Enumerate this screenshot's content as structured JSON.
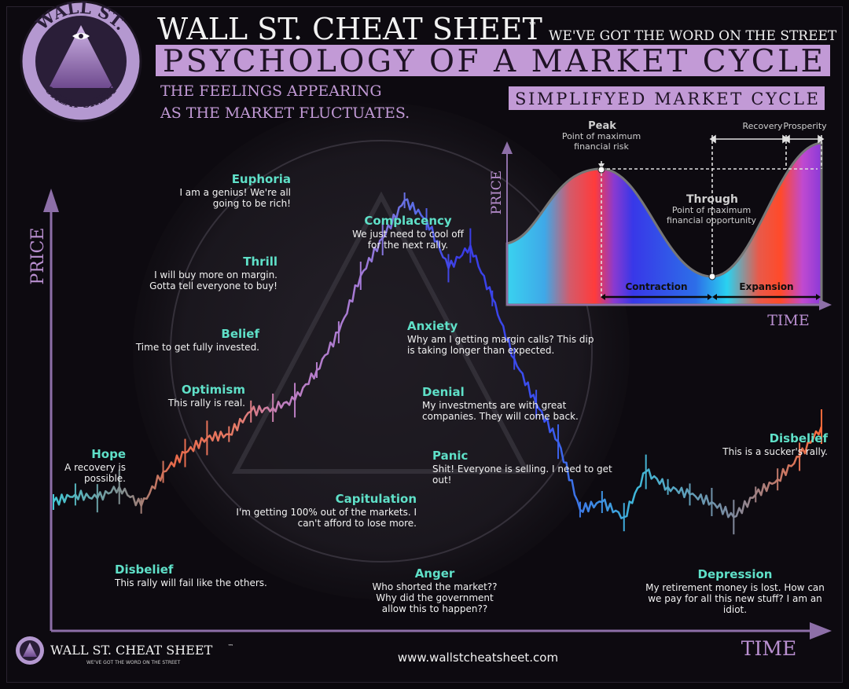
{
  "header": {
    "brand": "WALL ST. CHEAT SHEET",
    "tm": "™",
    "tagline": "WE'VE GOT THE WORD ON THE STREET",
    "title": "PSYCHOLOGY OF A MARKET CYCLE",
    "subtitle_line1": "THE FEELINGS APPEARING",
    "subtitle_line2": "AS THE MARKET FLUCTUATES.",
    "logo_top": "WALL ST.",
    "logo_bottom": "CHEAT SHEET"
  },
  "footer": {
    "brand": "WALL ST. CHEAT SHEET",
    "tm": "™",
    "tagline": "WE'VE GOT THE WORD ON THE STREET",
    "url": "www.wallstcheatsheet.com"
  },
  "colors": {
    "accent_purple": "#b98fd0",
    "banner_purple": "#c29ad6",
    "label_teal": "#5fe0c8",
    "text_white": "#f2f2f2"
  },
  "chart_data": [
    {
      "type": "line",
      "title": "PSYCHOLOGY OF A MARKET CYCLE",
      "xlabel": "TIME",
      "ylabel": "PRICE",
      "x": [
        0,
        1,
        2,
        3,
        4,
        5,
        6,
        7,
        8,
        9,
        10,
        11,
        12,
        13,
        14,
        15,
        16,
        17,
        18,
        19,
        20,
        21,
        22,
        23,
        24,
        25,
        26,
        27,
        28,
        29,
        30,
        31,
        32,
        33,
        34,
        35
      ],
      "y": [
        20,
        22,
        21,
        24,
        19,
        28,
        33,
        37,
        38,
        44,
        45,
        47,
        55,
        65,
        80,
        90,
        100,
        95,
        82,
        88,
        74,
        58,
        46,
        36,
        18,
        20,
        16,
        28,
        24,
        22,
        20,
        16,
        22,
        26,
        32,
        40
      ],
      "phases": [
        {
          "name": "Disbelief",
          "caption": "This rally will fail like the others."
        },
        {
          "name": "Hope",
          "caption": "A recovery is possible."
        },
        {
          "name": "Optimism",
          "caption": "This rally is real."
        },
        {
          "name": "Belief",
          "caption": "Time to get fully invested."
        },
        {
          "name": "Thrill",
          "caption": "I will buy more on margin. Gotta tell everyone to buy!"
        },
        {
          "name": "Euphoria",
          "caption": "I am a genius! We're all going to be rich!"
        },
        {
          "name": "Complacency",
          "caption": "We just need to cool off for the next rally."
        },
        {
          "name": "Anxiety",
          "caption": "Why am I getting margin calls? This dip is taking longer than expected."
        },
        {
          "name": "Denial",
          "caption": "My investments are with great companies. They will come back."
        },
        {
          "name": "Panic",
          "caption": "Shit! Everyone is selling. I need to get out!"
        },
        {
          "name": "Capitulation",
          "caption": "I'm getting 100% out of the markets. I can't afford to lose more."
        },
        {
          "name": "Anger",
          "caption": "Who shorted the market?? Why did the government allow this to happen??"
        },
        {
          "name": "Depression",
          "caption": "My retirement money is lost. How can we pay for all this new stuff? I am an idiot."
        },
        {
          "name": "Disbelief",
          "caption": "This is a sucker's rally."
        }
      ]
    },
    {
      "type": "area",
      "title": "SIMPLIFYED MARKET CYCLE",
      "xlabel": "TIME",
      "ylabel": "PRICE",
      "annotations": {
        "peak": "Peak",
        "peak_note": "Point of maximum financial risk",
        "trough": "Through",
        "trough_note": "Point of maximum financial opportunity",
        "recovery": "Recovery",
        "prosperity": "Prosperity",
        "contraction": "Contraction",
        "expansion": "Expansion"
      }
    }
  ]
}
